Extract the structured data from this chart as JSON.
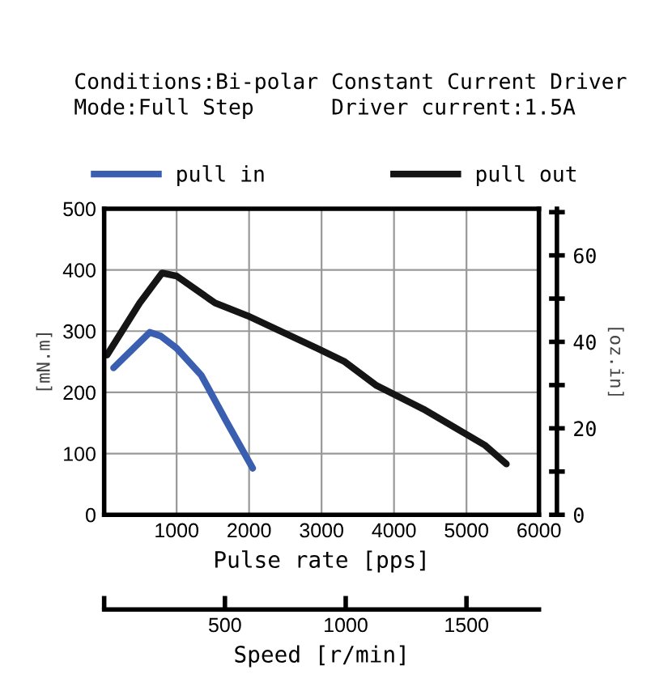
{
  "chart_data": {
    "type": "line",
    "annotations": [
      "Conditions:Bi-polar Constant Current Driver",
      "Mode:Full Step      Driver current:1.5A"
    ],
    "xlabel": "Pulse rate [pps]",
    "ylabel": "[mN.m]",
    "y2label": "[oz.in]",
    "x2label": "Speed [r/min]",
    "xlim": [
      0,
      6000
    ],
    "xticks": [
      {
        "value": 0,
        "label": null
      },
      1000,
      2000,
      3000,
      4000,
      5000,
      6000
    ],
    "ylim": [
      0,
      500
    ],
    "yticks": [
      0,
      100,
      200,
      300,
      400,
      500
    ],
    "y2lim": [
      0,
      70.8
    ],
    "y2ticks": [
      0,
      {
        "value": 10,
        "label": null
      },
      20,
      {
        "value": 30,
        "label": null
      },
      40,
      {
        "value": 50,
        "label": null
      },
      60,
      {
        "value": 70,
        "label": null
      }
    ],
    "x2lim": [
      0,
      1800
    ],
    "x2ticks": [
      {
        "value": 0,
        "label": null
      },
      500,
      1000,
      1500
    ],
    "grid": true,
    "legend": "top",
    "line_style": "solid",
    "marker": "none",
    "series": [
      {
        "name": "pull in",
        "color": "#3a5fb0",
        "x": [
          130,
          630,
          780,
          1000,
          1340,
          1680,
          2050
        ],
        "values": [
          240,
          298,
          292,
          272,
          228,
          154,
          76
        ]
      },
      {
        "name": "pull out",
        "color": "#151515",
        "x": [
          40,
          490,
          800,
          1000,
          1530,
          1980,
          2940,
          3320,
          3760,
          4430,
          5250,
          5550
        ],
        "values": [
          261,
          346,
          395,
          390,
          346,
          325,
          272,
          250,
          211,
          171,
          114,
          83
        ]
      }
    ]
  }
}
